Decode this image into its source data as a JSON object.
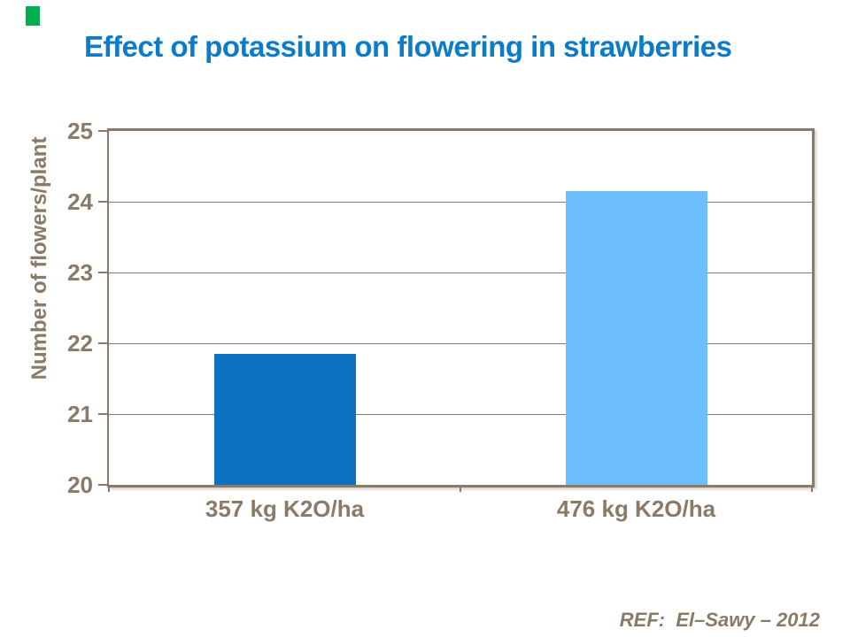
{
  "slide": {
    "title": "Effect of potassium on flowering in strawberries",
    "title_color": "#0C7BC8",
    "reference": "REF:  El–Sawy – 2012",
    "accent_green": "#00B050"
  },
  "chart_data": {
    "type": "bar",
    "title": "Effect of potassium on flowering in strawberries",
    "categories": [
      "357 kg K2O/ha",
      "476 kg K2O/ha"
    ],
    "values": [
      21.85,
      24.15
    ],
    "xlabel": "",
    "ylabel": "Number of flowers/plant",
    "ylim": [
      20,
      25
    ],
    "yticks": [
      20,
      21,
      22,
      23,
      24,
      25
    ],
    "grid": true,
    "legend": false,
    "bar_colors": [
      "#0B72C1",
      "#6CBEFC"
    ],
    "axis_color": "#8A7A66",
    "gridline_color": "#8A7A66",
    "tick_label_color": "#8A7A66"
  }
}
